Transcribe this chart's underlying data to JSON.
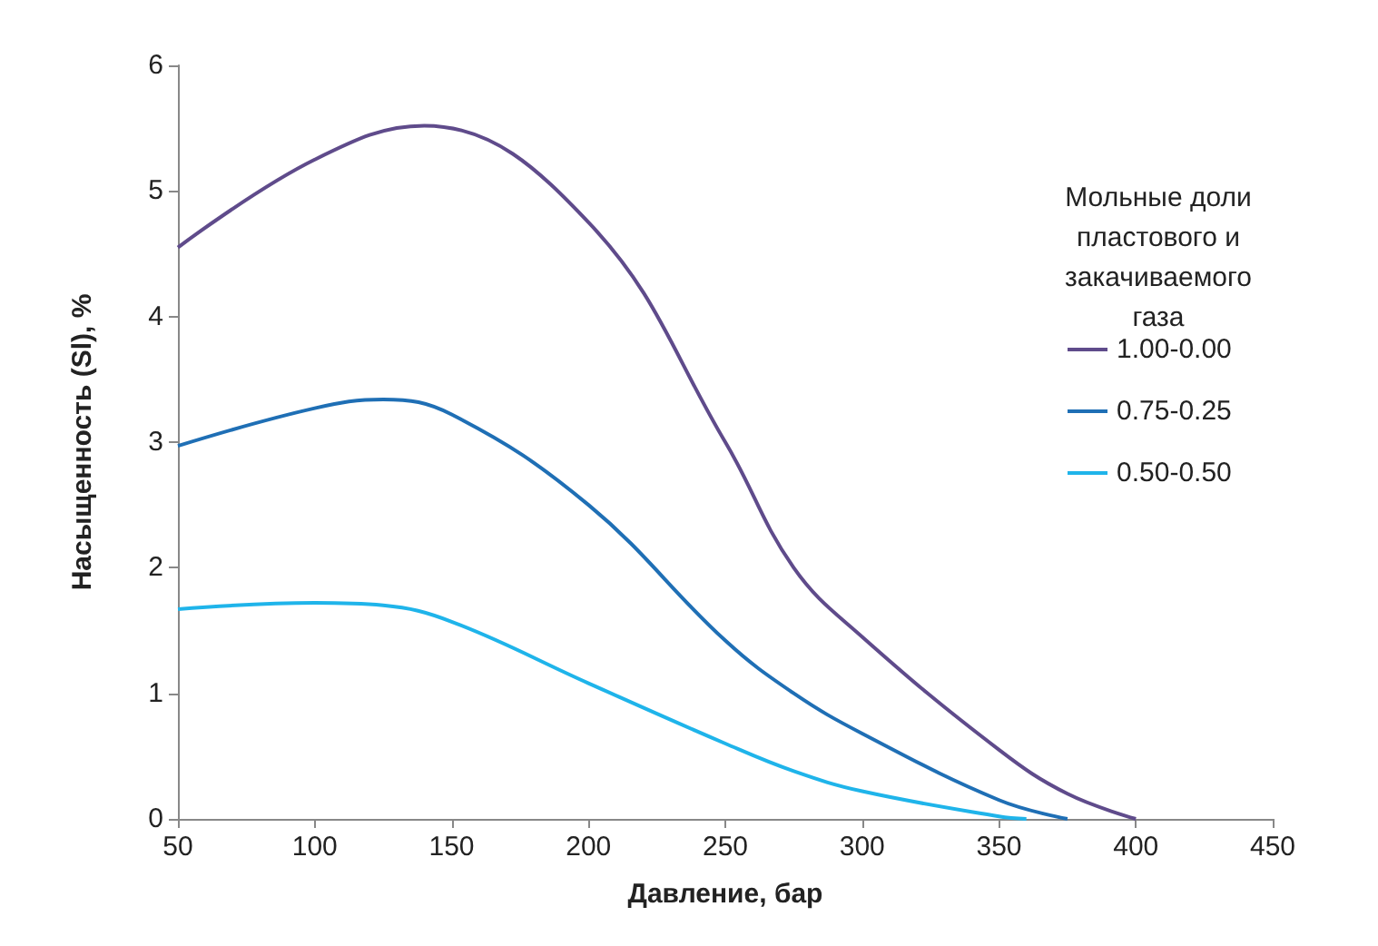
{
  "chart_data": {
    "type": "line",
    "xlabel": "Давление, бар",
    "ylabel": "Насыщенность (Sl), %",
    "legend_title": "Мольные доли\nпластового и\nзакачиваемого\nгаза",
    "legend": "top right",
    "grid": false,
    "xlim": [
      50,
      450
    ],
    "xticks": [
      50,
      100,
      150,
      200,
      250,
      300,
      350,
      400,
      450
    ],
    "ylim": [
      0,
      6
    ],
    "yticks": [
      0,
      1,
      2,
      3,
      4,
      5,
      6
    ],
    "x": [
      50,
      100,
      140,
      200,
      250,
      275,
      300,
      350,
      375,
      400
    ],
    "series": [
      {
        "name": "1.00-0.00",
        "color": "#5f4b8b",
        "values": [
          4.55,
          5.25,
          5.52,
          4.75,
          3.0,
          2.0,
          1.45,
          0.55,
          0.2,
          0
        ]
      },
      {
        "name": "0.75-0.25",
        "color": "#1f6fb5",
        "x": [
          50,
          100,
          125,
          150,
          200,
          250,
          275,
          300,
          350,
          375
        ],
        "values": [
          2.97,
          3.27,
          3.34,
          3.22,
          2.5,
          1.42,
          1.0,
          0.68,
          0.15,
          0
        ]
      },
      {
        "name": "0.50-0.50",
        "color": "#1fb4ea",
        "x": [
          50,
          100,
          125,
          150,
          200,
          250,
          275,
          300,
          350,
          360
        ],
        "values": [
          1.67,
          1.72,
          1.7,
          1.57,
          1.08,
          0.6,
          0.38,
          0.22,
          0.02,
          0
        ]
      }
    ]
  }
}
